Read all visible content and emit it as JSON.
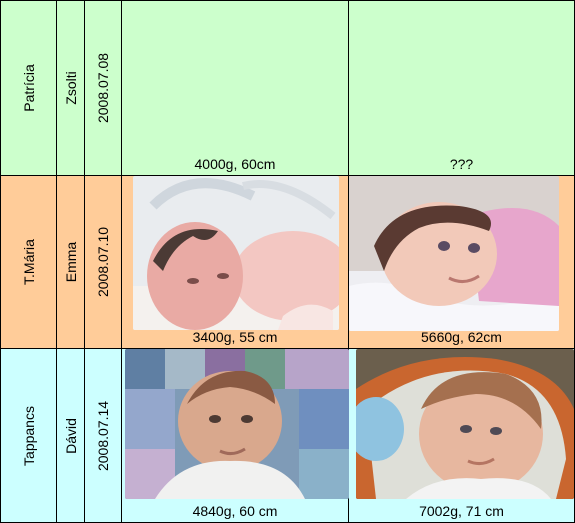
{
  "colors": {
    "row_green": "#ccffcc",
    "row_orange": "#ffcc99",
    "row_cyan": "#ccffff",
    "border": "#000000"
  },
  "rows": [
    {
      "parent": "Patrícia",
      "child": "Zsolti",
      "date": "2008.07.08",
      "birth_caption": "4000g, 60cm",
      "later_caption": "???",
      "birth_photo": null,
      "later_photo": null
    },
    {
      "parent": "T.Mária",
      "child": "Emma",
      "date": "2008.07.10",
      "birth_caption": "3400g, 55 cm",
      "later_caption": "5660g, 62cm",
      "birth_photo": "newborn-baby-photo",
      "later_photo": "baby-lying-photo"
    },
    {
      "parent": "Tappancs",
      "child": "Dávid",
      "date": "2008.07.14",
      "birth_caption": "4840g, 60 cm",
      "later_caption": "7002g, 71 cm",
      "birth_photo": "baby-sitting-photo",
      "later_photo": "baby-in-bouncer-photo"
    }
  ]
}
